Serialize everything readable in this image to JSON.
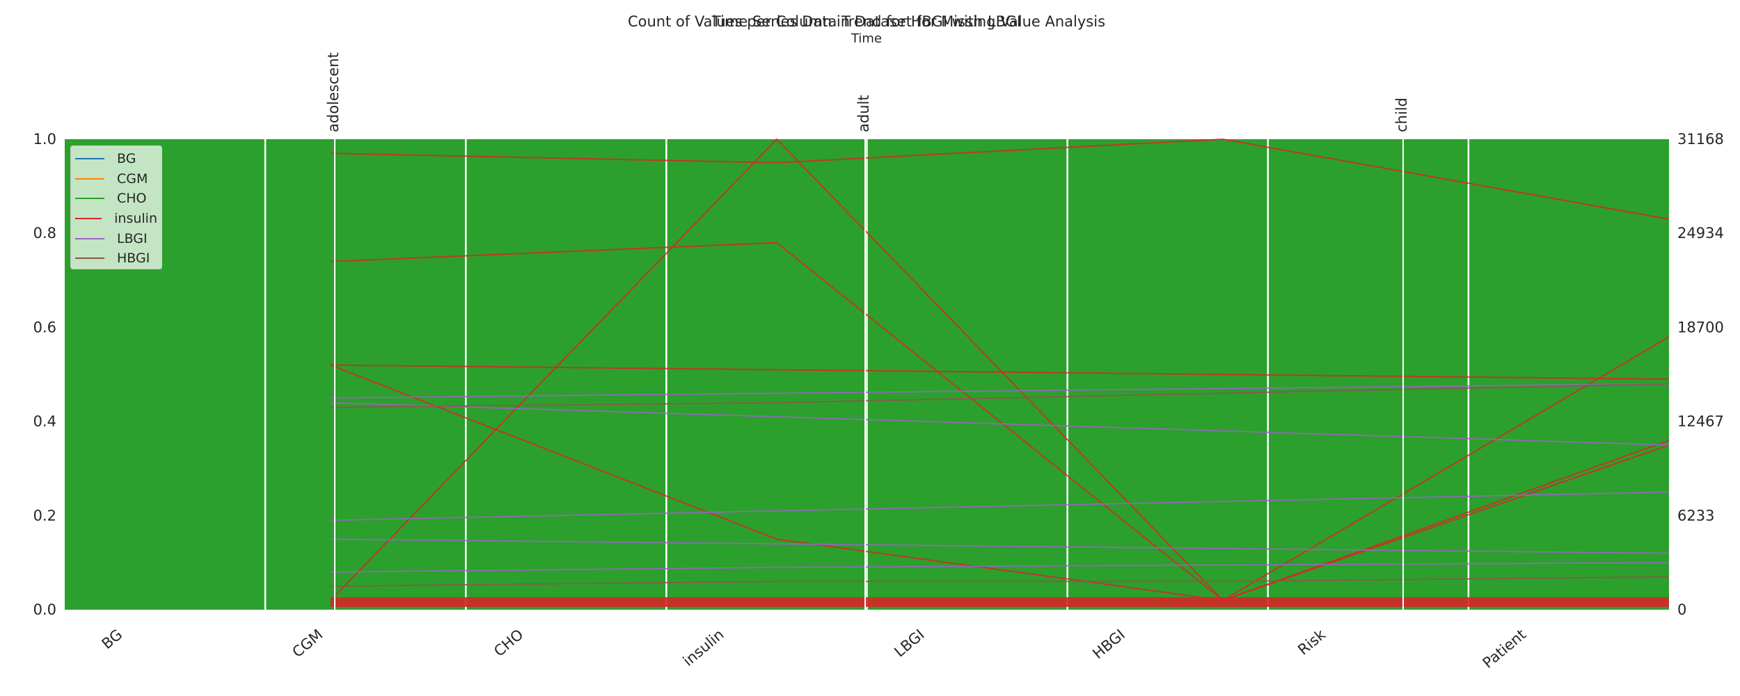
{
  "chart_data": [
    {
      "type": "bar",
      "title": "Count of Values per Column in Dataset for Missing Value Analysis",
      "categories": [
        "BG",
        "CGM",
        "CHO",
        "insulin",
        "LBGI",
        "HBGI",
        "Risk",
        "Patient"
      ],
      "ylim": [
        0,
        1.0
      ],
      "yticks": [
        "0.0",
        "0.2",
        "0.4",
        "0.6",
        "0.8",
        "1.0"
      ],
      "y2lim": [
        0,
        31168
      ],
      "y2ticks": [
        "0",
        "6233",
        "12467",
        "18700",
        "24934",
        "31168"
      ],
      "color": "#2ca02c"
    },
    {
      "type": "line",
      "title": "Time Series Data Trend for HBGI with LBGI",
      "xlabel": "Time",
      "xticks": [
        "adolescent",
        "adult",
        "child"
      ],
      "legend": {
        "placement": "upper-left",
        "items": [
          {
            "label": "BG",
            "color": "#1f77b4"
          },
          {
            "label": "CGM",
            "color": "#ff7f0e"
          },
          {
            "label": "CHO",
            "color": "#2ca02c"
          },
          {
            "label": "insulin",
            "color": "#d62728"
          },
          {
            "label": "LBGI",
            "color": "#9467bd"
          },
          {
            "label": "HBGI",
            "color": "#8c564b"
          }
        ]
      },
      "series": [
        {
          "values": [
            0.97,
            0.95,
            1.0,
            0.83
          ],
          "color": "#d62728"
        },
        {
          "values": [
            0.74,
            0.78,
            0.02,
            0.36
          ],
          "color": "#d62728"
        },
        {
          "values": [
            0.02,
            1.0,
            0.02,
            0.58
          ],
          "color": "#d62728"
        },
        {
          "values": [
            0.52,
            0.15,
            0.02,
            0.35
          ],
          "color": "#d62728"
        },
        {
          "values": [
            0.45,
            0.46,
            0.47,
            0.48
          ],
          "color": "#9467bd"
        },
        {
          "values": [
            0.44,
            0.41,
            0.38,
            0.35
          ],
          "color": "#9467bd"
        },
        {
          "values": [
            0.19,
            0.21,
            0.23,
            0.25
          ],
          "color": "#9467bd"
        },
        {
          "values": [
            0.15,
            0.14,
            0.13,
            0.12
          ],
          "color": "#9467bd"
        },
        {
          "values": [
            0.08,
            0.09,
            0.095,
            0.1
          ],
          "color": "#9467bd"
        },
        {
          "values": [
            0.52,
            0.51,
            0.5,
            0.49
          ],
          "color": "#d62728"
        },
        {
          "values": [
            0.43,
            0.44,
            0.46,
            0.48
          ],
          "color": "#8c564b"
        },
        {
          "values": [
            0.05,
            0.06,
            0.06,
            0.07
          ],
          "color": "#8c564b"
        }
      ]
    }
  ]
}
